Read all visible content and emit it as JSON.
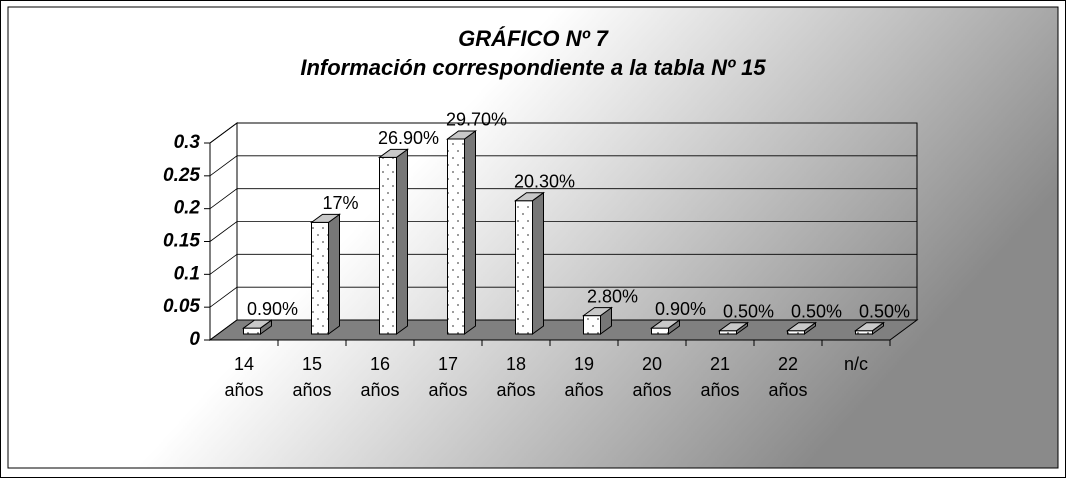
{
  "chart_data": {
    "type": "bar3d",
    "title": "GRÁFICO Nº 7",
    "subtitle": "Información correspondiente a la tabla Nº 15",
    "categories": [
      "14 años",
      "15 años",
      "16 años",
      "17 años",
      "18 años",
      "19 años",
      "20 años",
      "21 años",
      "22 años",
      "n/c"
    ],
    "values": [
      0.009,
      0.17,
      0.269,
      0.297,
      0.203,
      0.028,
      0.009,
      0.005,
      0.005,
      0.005
    ],
    "value_labels": [
      "0.90%",
      "17%",
      "26.90%",
      "29.70%",
      "20.30%",
      "2.80%",
      "0.90%",
      "0.50%",
      "0.50%",
      "0.50%"
    ],
    "ylim": [
      0,
      0.3
    ],
    "yticks": [
      0,
      0.05,
      0.1,
      0.15,
      0.2,
      0.25,
      0.3
    ],
    "grid": true,
    "color": "#ffffff"
  }
}
